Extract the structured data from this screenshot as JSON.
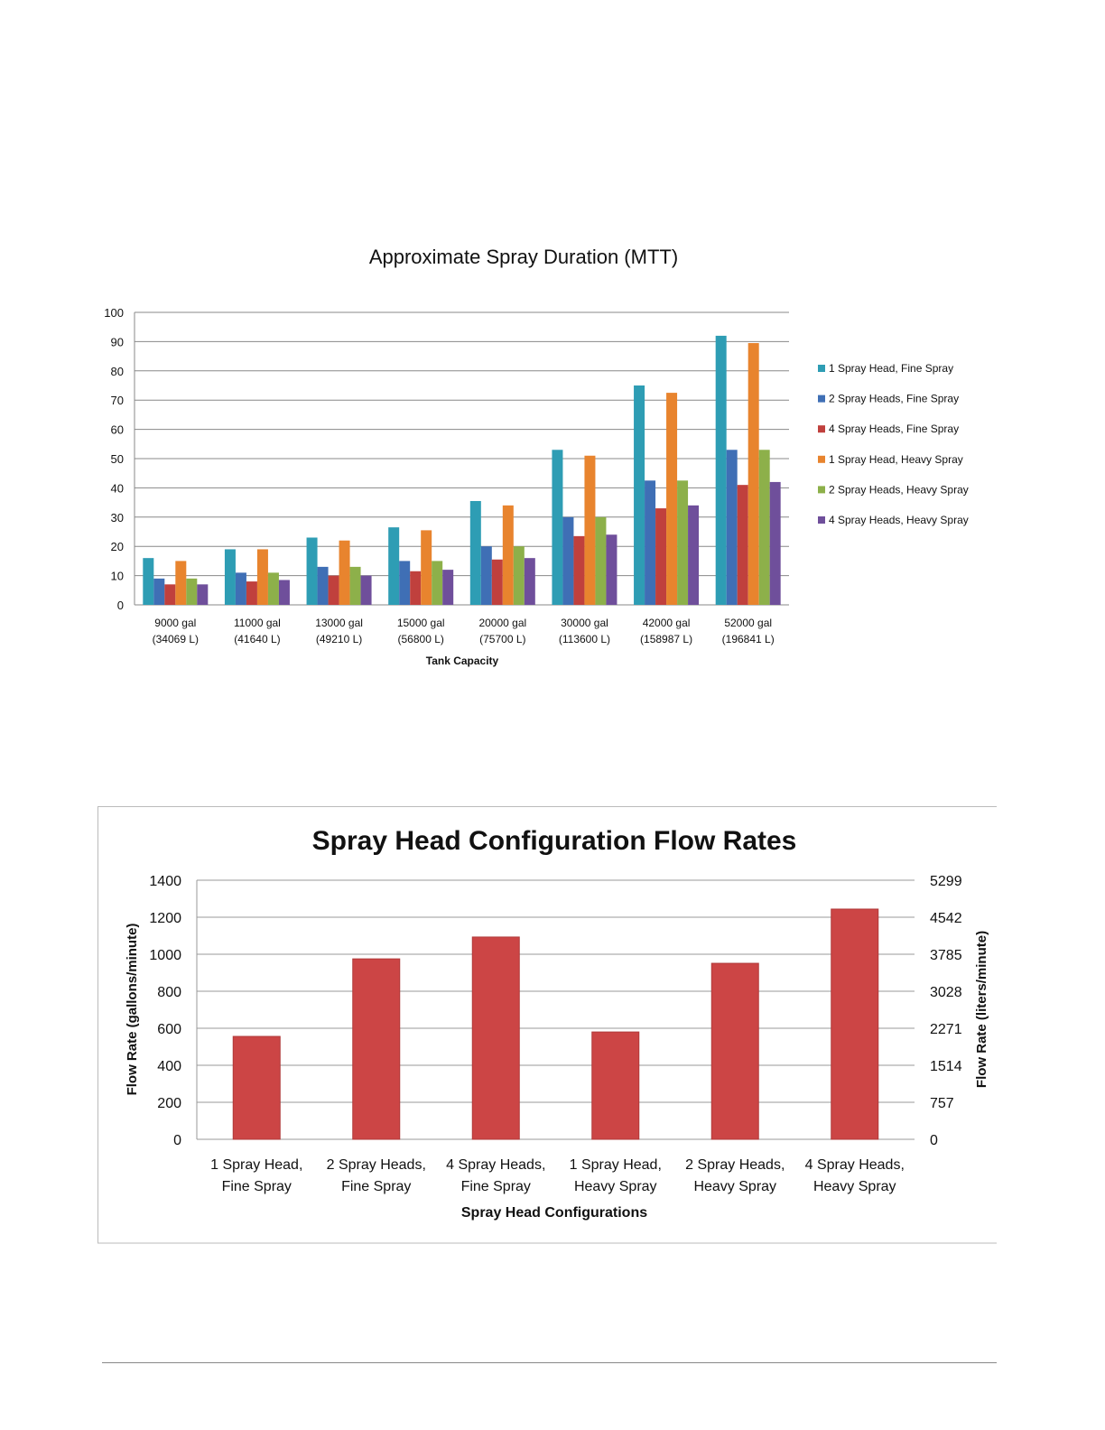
{
  "chart_data": [
    {
      "type": "bar",
      "title": "Approximate Spray Duration (MTT)",
      "xlabel": "Tank Capacity",
      "ylabel": "",
      "ylim": [
        0,
        100
      ],
      "yticks": [
        "0",
        "10",
        "20",
        "30",
        "40",
        "50",
        "60",
        "70",
        "80",
        "90",
        "100"
      ],
      "grid": true,
      "legend_position": "right",
      "categories": [
        [
          "9000 gal",
          "(34069 L)"
        ],
        [
          "11000 gal",
          "(41640 L)"
        ],
        [
          "13000 gal",
          "(49210 L)"
        ],
        [
          "15000 gal",
          "(56800 L)"
        ],
        [
          "20000 gal",
          "(75700 L)"
        ],
        [
          "30000 gal",
          "(113600 L)"
        ],
        [
          "42000 gal",
          "(158987 L)"
        ],
        [
          "52000 gal",
          "(196841 L)"
        ]
      ],
      "series": [
        {
          "name": "1 Spray Head, Fine Spray",
          "color": "#2e9db4",
          "values": [
            16,
            19,
            23,
            26.5,
            35.5,
            53,
            75,
            92
          ]
        },
        {
          "name": "2 Spray Heads, Fine Spray",
          "color": "#3f6fb5",
          "values": [
            9,
            11,
            13,
            15,
            20,
            30,
            42.5,
            53
          ]
        },
        {
          "name": "4 Spray Heads, Fine Spray",
          "color": "#c0403d",
          "values": [
            7,
            8,
            10,
            11.5,
            15.5,
            23.5,
            33,
            41
          ]
        },
        {
          "name": "1 Spray Head, Heavy Spray",
          "color": "#e8842e",
          "values": [
            15,
            19,
            22,
            25.5,
            34,
            51,
            72.5,
            89.5
          ]
        },
        {
          "name": "2 Spray Heads, Heavy Spray",
          "color": "#8db04a",
          "values": [
            9,
            11,
            13,
            15,
            20,
            30,
            42.5,
            53
          ]
        },
        {
          "name": "4 Spray Heads, Heavy Spray",
          "color": "#6f4f9b",
          "values": [
            7,
            8.5,
            10,
            12,
            16,
            24,
            34,
            42
          ]
        }
      ]
    },
    {
      "type": "bar",
      "title": "Spray Head Configuration Flow Rates",
      "xlabel": "Spray Head Configurations",
      "ylabel": "Flow Rate (gallons/minute)",
      "y2label": "Flow Rate (liters/minute)",
      "ylim": [
        0,
        1400
      ],
      "yticks": [
        "0",
        "200",
        "400",
        "600",
        "800",
        "1000",
        "1200",
        "1400"
      ],
      "y2ticks": [
        "0",
        "757",
        "1514",
        "2271",
        "3028",
        "3785",
        "4542",
        "5299"
      ],
      "grid": true,
      "bar_color": "#cc4545",
      "categories": [
        [
          "1 Spray Head,",
          "Fine Spray"
        ],
        [
          "2 Spray Heads,",
          "Fine Spray"
        ],
        [
          "4 Spray Heads,",
          "Fine Spray"
        ],
        [
          "1 Spray Head,",
          "Heavy Spray"
        ],
        [
          "2 Spray Heads,",
          "Heavy Spray"
        ],
        [
          "4 Spray Heads,",
          "Heavy Spray"
        ]
      ],
      "values": [
        556,
        975,
        1093,
        580,
        951,
        1244
      ]
    }
  ]
}
